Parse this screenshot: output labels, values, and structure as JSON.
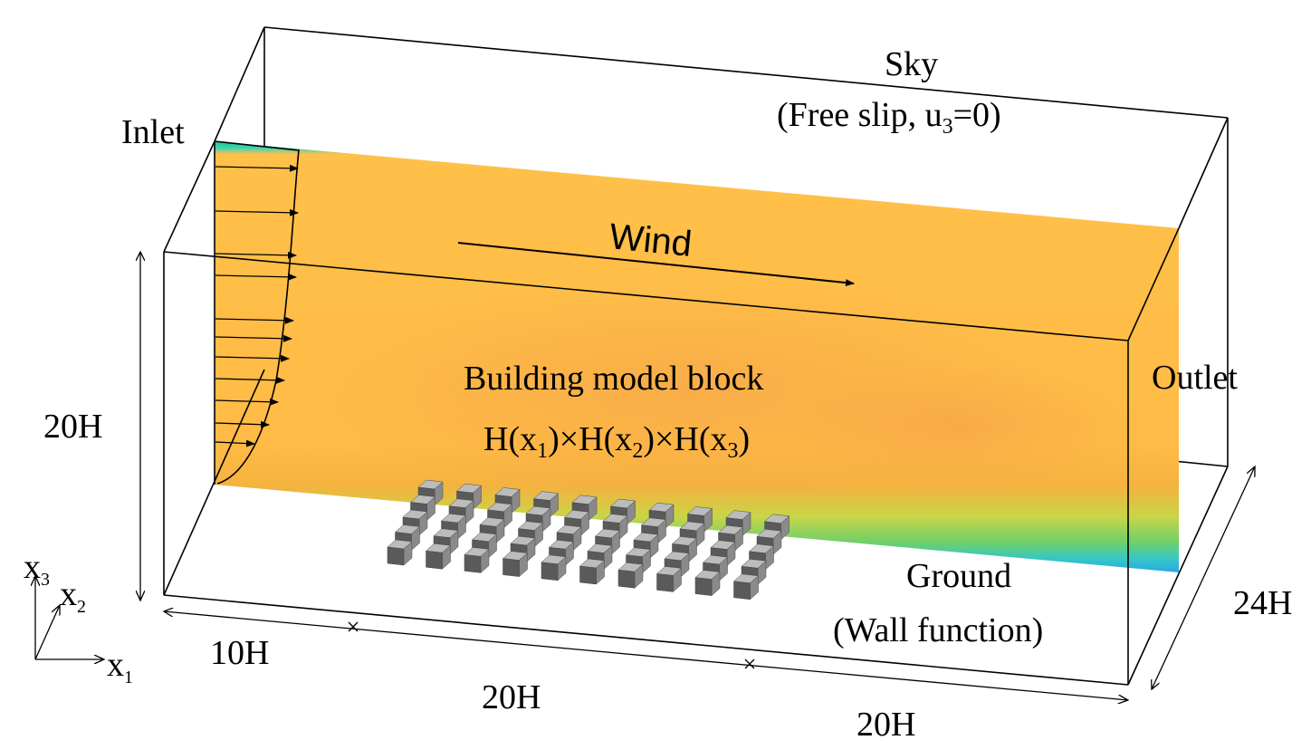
{
  "labels": {
    "sky": "Sky",
    "sky_bc": "(Free slip, u",
    "sky_bc_sub": "3",
    "sky_bc_end": "=0)",
    "inlet": "Inlet",
    "wind": "Wind",
    "building_title": "Building model block",
    "building_dims": [
      {
        "base": "H(x",
        "sub": "1",
        "tail": ")×"
      },
      {
        "base": "H(x",
        "sub": "2",
        "tail": ")×"
      },
      {
        "base": "H(x",
        "sub": "3",
        "tail": ")"
      }
    ],
    "outlet": "Outlet",
    "height": "20H",
    "ground": "Ground",
    "ground_bc": "(Wall function)",
    "depth": "24H",
    "len_upstream": "10H",
    "len_block": "20H",
    "len_downstream": "20H"
  },
  "axes": {
    "x3": {
      "base": "x",
      "sub": "3"
    },
    "x2": {
      "base": "x",
      "sub": "2"
    },
    "x1": {
      "base": "x",
      "sub": "1"
    }
  },
  "building_array": {
    "rows": 10,
    "cols": 5
  },
  "colors": {
    "flow_core": "#ffbd47",
    "flow_wake": "#f0a040",
    "flow_top_edge": "#2fc7a0",
    "flow_bottom": "#28d0c8",
    "ground_layer": "#4ab0e6",
    "building_top": "#bcbcbc",
    "building_side": "#8a8a8a",
    "building_front": "#5a5a5a"
  }
}
